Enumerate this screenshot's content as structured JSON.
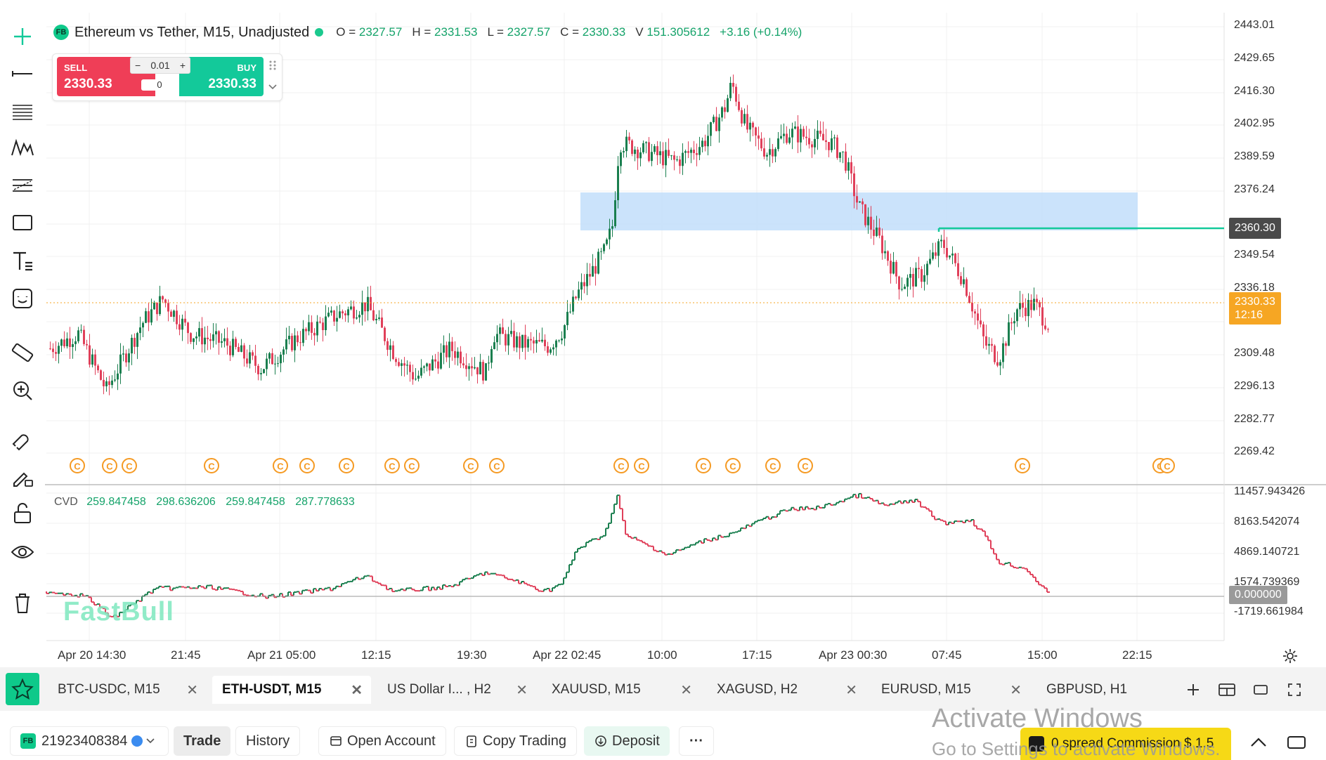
{
  "symbol": {
    "badge": "FB",
    "title": "Ethereum vs Tether, M15, Unadjusted",
    "ohlc": [
      {
        "k": "O =",
        "v": "2327.57"
      },
      {
        "k": "H =",
        "v": "2331.53"
      },
      {
        "k": "L =",
        "v": "2327.57"
      },
      {
        "k": "C =",
        "v": "2330.33"
      },
      {
        "k": "V",
        "v": "151.305612"
      }
    ],
    "change": "+3.16 (+0.14%)"
  },
  "trade": {
    "sell_label": "SELL",
    "buy_label": "BUY",
    "sell_price": "2330.33",
    "buy_price": "2330.33",
    "qty": "0.01",
    "spread": "0",
    "minus": "−",
    "plus": "+"
  },
  "price_axis": {
    "labels": [
      "2443.01",
      "2429.65",
      "2416.30",
      "2402.95",
      "2389.59",
      "2376.24",
      "2349.54",
      "2336.18",
      "2309.48",
      "2296.13",
      "2282.77",
      "2269.42"
    ],
    "line_tag": "2360.30",
    "current_price": "2330.33",
    "countdown": "12:16"
  },
  "cvd": {
    "label": "CVD",
    "values": [
      "259.847458",
      "298.636206",
      "259.847458",
      "287.778633"
    ],
    "axis": [
      "11457.943426",
      "8163.542074",
      "4869.140721",
      "1574.739369",
      "-1719.661984"
    ],
    "zero_tag": "0.000000"
  },
  "time_axis": [
    "Apr 20 14:30",
    "21:45",
    "Apr 21 05:00",
    "12:15",
    "19:30",
    "Apr 22 02:45",
    "10:00",
    "17:15",
    "Apr 23 00:30",
    "07:45",
    "15:00",
    "22:15"
  ],
  "watermark": "FastBull",
  "tabs": [
    {
      "label": "BTC-USDC, M15",
      "close": "✕"
    },
    {
      "label": "ETH-USDT, M15",
      "close": "✕",
      "active": true
    },
    {
      "label": "US Dollar I... , H2",
      "close": "✕"
    },
    {
      "label": "XAUUSD, M15",
      "close": "✕"
    },
    {
      "label": "XAGUSD, H2",
      "close": "✕"
    },
    {
      "label": "EURUSD, M15",
      "close": "✕"
    },
    {
      "label": "GBPUSD, H1",
      "close": ""
    }
  ],
  "bottom": {
    "account_badge": "FB",
    "account_id": "21923408384",
    "trade": "Trade",
    "history": "History",
    "open_account": "Open Account",
    "copy_trading": "Copy Trading",
    "deposit": "Deposit",
    "more": "···",
    "promo": "0 spread Commission $ 1.5"
  },
  "os_overlay": {
    "line1": "Activate Windows",
    "line2": "Go to Settings to activate Windows."
  },
  "colors": {
    "up": "#1a7f4f",
    "down": "#e0405a",
    "accent": "#13c99a",
    "zone": "#c5e0fb",
    "current": "#f6a623"
  }
}
